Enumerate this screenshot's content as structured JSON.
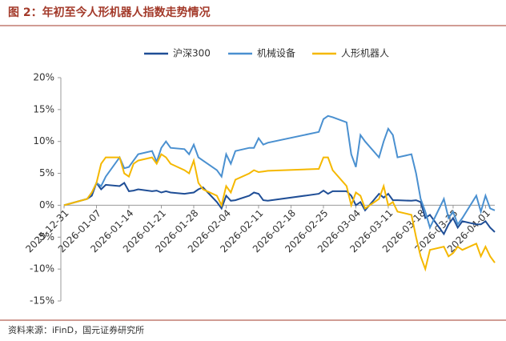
{
  "chart_data": {
    "type": "line",
    "title": "图 2：年初至今人形机器人指数走势情况",
    "source": "资料来源：iFinD，国元证券研究所",
    "x": [
      "2025-12-31",
      "2026-01-05",
      "2026-01-06",
      "2026-01-07",
      "2026-01-08",
      "2026-01-09",
      "2026-01-12",
      "2026-01-13",
      "2026-01-14",
      "2026-01-15",
      "2026-01-16",
      "2026-01-19",
      "2026-01-20",
      "2026-01-21",
      "2026-01-22",
      "2026-01-23",
      "2026-01-26",
      "2026-01-27",
      "2026-01-28",
      "2026-01-29",
      "2026-01-30",
      "2026-02-02",
      "2026-02-03",
      "2026-02-04",
      "2026-02-05",
      "2026-02-06",
      "2026-02-09",
      "2026-02-10",
      "2026-02-11",
      "2026-02-12",
      "2026-02-13",
      "2026-02-24",
      "2026-02-25",
      "2026-02-26",
      "2026-02-27",
      "2026-03-02",
      "2026-03-03",
      "2026-03-04",
      "2026-03-05",
      "2026-03-06",
      "2026-03-09",
      "2026-03-10",
      "2026-03-11",
      "2026-03-12",
      "2026-03-13",
      "2026-03-16",
      "2026-03-17",
      "2026-03-18",
      "2026-03-19",
      "2026-03-20",
      "2026-03-23",
      "2026-03-24",
      "2026-03-25",
      "2026-03-26",
      "2026-03-27",
      "2026-03-30",
      "2026-03-31",
      "2026-04-01",
      "2026-04-02",
      "2026-04-03"
    ],
    "series": [
      {
        "name": "沪深300",
        "color": "#1f4e96",
        "values": [
          0,
          1,
          1.5,
          3.5,
          2.5,
          3.2,
          3,
          3.5,
          2.2,
          2.3,
          2.5,
          2.2,
          2.3,
          2,
          2.2,
          2,
          1.8,
          1.9,
          2,
          2.5,
          2.8,
          0.5,
          -0.5,
          1.5,
          0.7,
          0.8,
          1.5,
          2,
          1.8,
          0.8,
          0.7,
          1.8,
          2.3,
          1.8,
          2.2,
          2.2,
          1.5,
          0,
          0.5,
          -0.8,
          1.8,
          1.2,
          1.8,
          0.8,
          0.8,
          0.7,
          0.8,
          0.5,
          -2,
          -1.5,
          -4.5,
          -3,
          -2,
          -3.5,
          -2.5,
          -3,
          -3,
          -2.5,
          -3.5,
          -4.2
        ]
      },
      {
        "name": "机械设备",
        "color": "#4a90d0",
        "values": [
          0,
          1,
          2,
          3.5,
          3,
          4.5,
          7.5,
          5.8,
          6,
          7,
          8,
          8.5,
          6.8,
          9,
          10,
          9,
          8.8,
          8,
          9.5,
          7.5,
          7,
          5.5,
          4.5,
          8,
          6.5,
          8.5,
          9,
          9,
          10.5,
          9.5,
          9.8,
          11.5,
          13.5,
          14,
          13.8,
          13,
          8,
          6,
          11,
          10,
          7.5,
          10,
          12,
          11,
          7.5,
          8,
          5,
          1,
          -1,
          -3.5,
          1,
          -2,
          -1,
          -3,
          -2,
          1.5,
          -1,
          1.5,
          -0.5,
          -0.8
        ]
      },
      {
        "name": "人形机器人",
        "color": "#f5b800",
        "values": [
          0,
          1,
          2,
          3.5,
          6.5,
          7.5,
          7.5,
          5,
          4.5,
          6.5,
          7,
          7.5,
          6.5,
          8,
          7.5,
          6.5,
          5.5,
          5,
          7,
          3.5,
          2.5,
          1.5,
          0,
          3,
          2,
          4,
          5,
          5.5,
          5.2,
          5.3,
          5.4,
          5.7,
          7.5,
          7.5,
          5.5,
          3,
          0,
          2,
          1.5,
          -0.5,
          1,
          3,
          0,
          0.5,
          -1,
          -1.5,
          -5,
          -8,
          -10,
          -7,
          -6.5,
          -8,
          -7.5,
          -6.5,
          -7,
          -6,
          -8,
          -6.5,
          -8,
          -9
        ]
      }
    ],
    "xlim": [
      "2025-12-31",
      "2026-04-03"
    ],
    "xticks": [
      "2025-12-31",
      "2026-01-07",
      "2026-01-14",
      "2026-01-21",
      "2026-01-28",
      "2026-02-04",
      "2026-02-11",
      "2026-02-18",
      "2026-02-25",
      "2026-03-04",
      "2026-03-11",
      "2026-03-18",
      "2026-03-25",
      "2026-04-01"
    ],
    "ylim": [
      -15,
      20
    ],
    "yticks": [
      {
        "value": -15,
        "label": "-15%"
      },
      {
        "value": -10,
        "label": "-10%"
      },
      {
        "value": -5,
        "label": "-5%"
      },
      {
        "value": 0,
        "label": "0%"
      },
      {
        "value": 5,
        "label": "5%"
      },
      {
        "value": 10,
        "label": "10%"
      },
      {
        "value": 15,
        "label": "15%"
      },
      {
        "value": 20,
        "label": "20%"
      }
    ],
    "legend": "top"
  }
}
